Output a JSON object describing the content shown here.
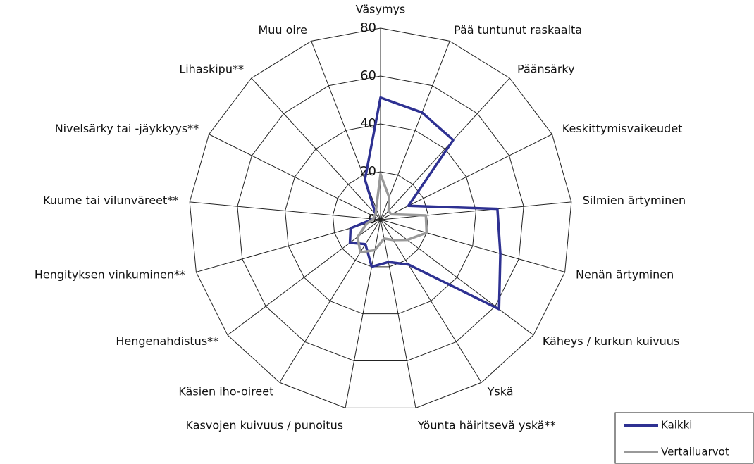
{
  "chart_data": {
    "type": "radar",
    "categories": [
      "Väsymys",
      "Pää tuntunut raskaalta",
      "Päänsärky",
      "Keskittymisvaikeudet",
      "Silmien ärtyminen",
      "Nenän ärtyminen",
      "Käheys / kurkun kuivuus",
      "Yskä",
      "Yöunta häiritsevä yskä**",
      "Kasvojen kuivuus / punoitus",
      "Käsien iho-oireet",
      "Hengenahdistus**",
      "Hengityksen vinkuminen**",
      "Kuume tai vilunväreet**",
      "Nivelsärky tai -jäykkyys**",
      "Lihaskipu**",
      "Muu oire"
    ],
    "series": [
      {
        "name": "Kaikki",
        "color": "#2e3192",
        "values": [
          51,
          48,
          45,
          13,
          49,
          52,
          62,
          22,
          18,
          20,
          12,
          16,
          13,
          3,
          3,
          3,
          18
        ]
      },
      {
        "name": "Vertailuarvot",
        "color": "#999999",
        "values": [
          19,
          10,
          5,
          5,
          19,
          20,
          14,
          10,
          8,
          13,
          16,
          12,
          6,
          3,
          3,
          3,
          5
        ]
      }
    ],
    "rlim": [
      0,
      80
    ],
    "rticks": [
      0,
      20,
      40,
      60,
      80
    ],
    "grid": true,
    "legend": "lower right"
  }
}
